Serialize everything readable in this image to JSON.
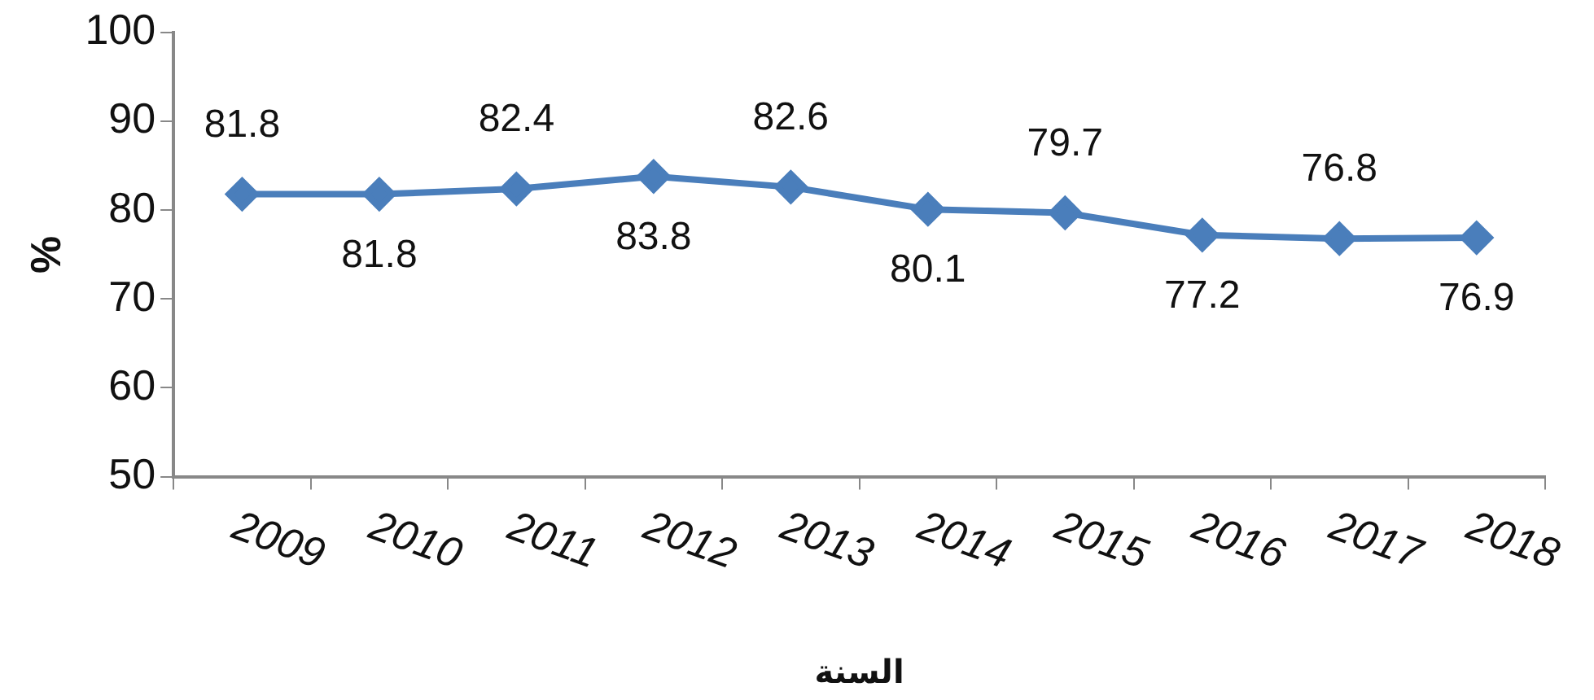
{
  "chart_data": {
    "type": "line",
    "xlabel": "السنة",
    "ylabel": "%",
    "categories": [
      "2009",
      "2010",
      "2011",
      "2012",
      "2013",
      "2014",
      "2015",
      "2016",
      "2017",
      "2018"
    ],
    "series": [
      {
        "color": "#4a7ebb",
        "values": [
          81.8,
          81.8,
          82.4,
          83.8,
          82.6,
          80.1,
          79.7,
          77.2,
          76.8,
          76.9
        ]
      }
    ],
    "ylim": [
      50,
      100
    ],
    "yticks": [
      50,
      60,
      70,
      80,
      90,
      100
    ],
    "grid": false,
    "legend": false,
    "marker": "diamond",
    "line_style": "solid",
    "data_labels": true
  }
}
